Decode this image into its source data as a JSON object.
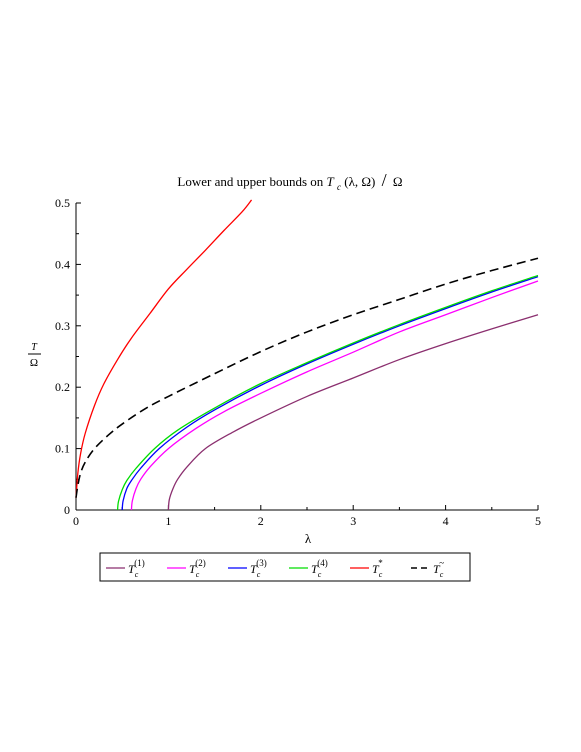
{
  "chart_data": {
    "type": "line",
    "title": {
      "prefix": "Lower and upper bounds on ",
      "base": "T",
      "sub": "c",
      "args": "(λ, Ω)",
      "divider": "/",
      "denominator": "Ω"
    },
    "xlabel": "λ",
    "ylabel": {
      "numerator": "T",
      "denominator": "Ω"
    },
    "xlim": [
      0,
      5
    ],
    "ylim": [
      0,
      0.5
    ],
    "x_ticks": [
      "0",
      "1",
      "2",
      "3",
      "4",
      "5"
    ],
    "y_ticks": [
      "0",
      "0.1",
      "0.2",
      "0.3",
      "0.4",
      "0.5"
    ],
    "grid": false,
    "legend_position": "bottom",
    "series": [
      {
        "name": "T_c^(1)",
        "base": "T",
        "sub": "c",
        "sup": "(1)",
        "color": "#8B2F6F",
        "dash": "solid",
        "x": [
          1.0,
          1.01,
          1.05,
          1.1,
          1.2,
          1.4,
          1.7,
          2.0,
          2.5,
          3.0,
          3.5,
          4.0,
          4.5,
          5.0
        ],
        "y": [
          0.0,
          0.017,
          0.035,
          0.05,
          0.07,
          0.1,
          0.127,
          0.15,
          0.185,
          0.215,
          0.245,
          0.271,
          0.295,
          0.318
        ]
      },
      {
        "name": "T_c^(2)",
        "base": "T",
        "sub": "c",
        "sup": "(2)",
        "color": "#FF00FF",
        "dash": "solid",
        "x": [
          0.6,
          0.61,
          0.65,
          0.7,
          0.8,
          1.0,
          1.3,
          1.6,
          2.0,
          2.5,
          3.0,
          3.5,
          4.0,
          4.5,
          5.0
        ],
        "y": [
          0.0,
          0.015,
          0.035,
          0.05,
          0.07,
          0.1,
          0.133,
          0.16,
          0.19,
          0.225,
          0.257,
          0.29,
          0.318,
          0.346,
          0.373
        ]
      },
      {
        "name": "T_c^(3)",
        "base": "T",
        "sub": "c",
        "sup": "(3)",
        "color": "#0000FF",
        "dash": "solid",
        "x": [
          0.5,
          0.51,
          0.55,
          0.6,
          0.7,
          0.9,
          1.2,
          1.5,
          2.0,
          2.5,
          3.0,
          3.5,
          4.0,
          4.5,
          5.0
        ],
        "y": [
          0.0,
          0.015,
          0.035,
          0.048,
          0.068,
          0.1,
          0.135,
          0.163,
          0.203,
          0.238,
          0.27,
          0.3,
          0.328,
          0.355,
          0.38
        ]
      },
      {
        "name": "T_c^(4)",
        "base": "T",
        "sub": "c",
        "sup": "(4)",
        "color": "#00DD00",
        "dash": "solid",
        "x": [
          0.45,
          0.46,
          0.5,
          0.55,
          0.65,
          0.85,
          1.1,
          1.5,
          2.0,
          2.5,
          3.0,
          3.5,
          4.0,
          4.5,
          5.0
        ],
        "y": [
          0.0,
          0.014,
          0.033,
          0.048,
          0.068,
          0.1,
          0.13,
          0.166,
          0.206,
          0.24,
          0.272,
          0.302,
          0.33,
          0.357,
          0.382
        ]
      },
      {
        "name": "T_c^*",
        "base": "T",
        "sub": "c",
        "sup": "*",
        "color": "#FF0000",
        "dash": "solid",
        "x": [
          0.0,
          0.02,
          0.05,
          0.1,
          0.2,
          0.3,
          0.45,
          0.6,
          0.8,
          1.0,
          1.2,
          1.4,
          1.6,
          1.8,
          1.9
        ],
        "y": [
          0.02,
          0.06,
          0.092,
          0.125,
          0.17,
          0.205,
          0.245,
          0.28,
          0.32,
          0.36,
          0.392,
          0.423,
          0.455,
          0.486,
          0.505
        ]
      },
      {
        "name": "T_c^~",
        "base": "T",
        "sub": "c",
        "sup": "~",
        "color": "#000000",
        "dash": "dashed",
        "x": [
          0.0,
          0.02,
          0.05,
          0.1,
          0.2,
          0.35,
          0.5,
          0.75,
          1.0,
          1.5,
          2.0,
          2.5,
          3.0,
          3.5,
          4.0,
          4.5,
          5.0
        ],
        "y": [
          0.02,
          0.04,
          0.06,
          0.078,
          0.1,
          0.122,
          0.14,
          0.165,
          0.185,
          0.222,
          0.258,
          0.29,
          0.318,
          0.343,
          0.368,
          0.39,
          0.41
        ]
      }
    ]
  }
}
